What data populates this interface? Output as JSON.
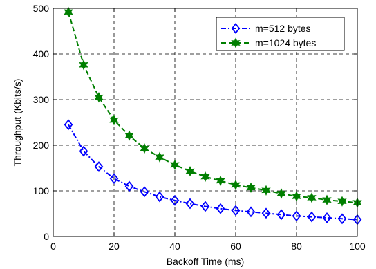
{
  "chart_data": {
    "type": "line",
    "title": "",
    "xlabel": "Backoff Time (ms)",
    "ylabel": "Throughput (Kbits/s)",
    "xlim": [
      0,
      100
    ],
    "ylim": [
      0,
      500
    ],
    "xticks": [
      "0",
      "20",
      "40",
      "60",
      "80",
      "100"
    ],
    "yticks": [
      "0",
      "100",
      "200",
      "300",
      "400",
      "500"
    ],
    "grid": true,
    "legend_position": "top-right",
    "x": [
      5,
      10,
      15,
      20,
      25,
      30,
      35,
      40,
      45,
      50,
      55,
      60,
      65,
      70,
      75,
      80,
      85,
      90,
      95,
      100
    ],
    "series": [
      {
        "name": "m=512 bytes",
        "color": "#0000ff",
        "marker": "diamond",
        "line_style": "dash-dot",
        "values": [
          245,
          187,
          153,
          127,
          110,
          98,
          87,
          79,
          72,
          66,
          61,
          57,
          54,
          51,
          48,
          45,
          43,
          41,
          39,
          37
        ]
      },
      {
        "name": "m=1024 bytes",
        "color": "#007f00",
        "marker": "hexagram",
        "line_style": "dashed",
        "values": [
          492,
          376,
          305,
          255,
          221,
          193,
          174,
          157,
          143,
          131,
          122,
          113,
          107,
          101,
          94,
          88,
          85,
          80,
          77,
          74
        ]
      }
    ]
  }
}
